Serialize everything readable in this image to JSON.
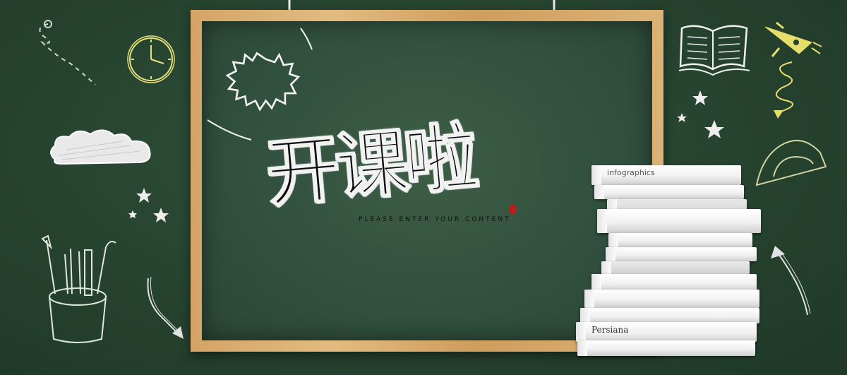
{
  "banner": {
    "title": "开课啦",
    "subtitle": "PLEASE ENTER YOUR CONTENT"
  },
  "books": {
    "spines": [
      "infographics",
      "Persiana"
    ]
  },
  "icons": [
    "clock-icon",
    "cloud-icon",
    "star-icon",
    "pencil-cup-icon",
    "arrow-icon",
    "open-book-icon",
    "rocket-icon",
    "protractor-icon",
    "pushpin-string-icon"
  ],
  "colors": {
    "background": "#24402f",
    "chalkboard": "#3a5a42",
    "frame": "#d9ad72",
    "chalk_white": "#f2f2f2",
    "chalk_yellow": "#e8e27a",
    "seal_red": "#b3231e"
  }
}
